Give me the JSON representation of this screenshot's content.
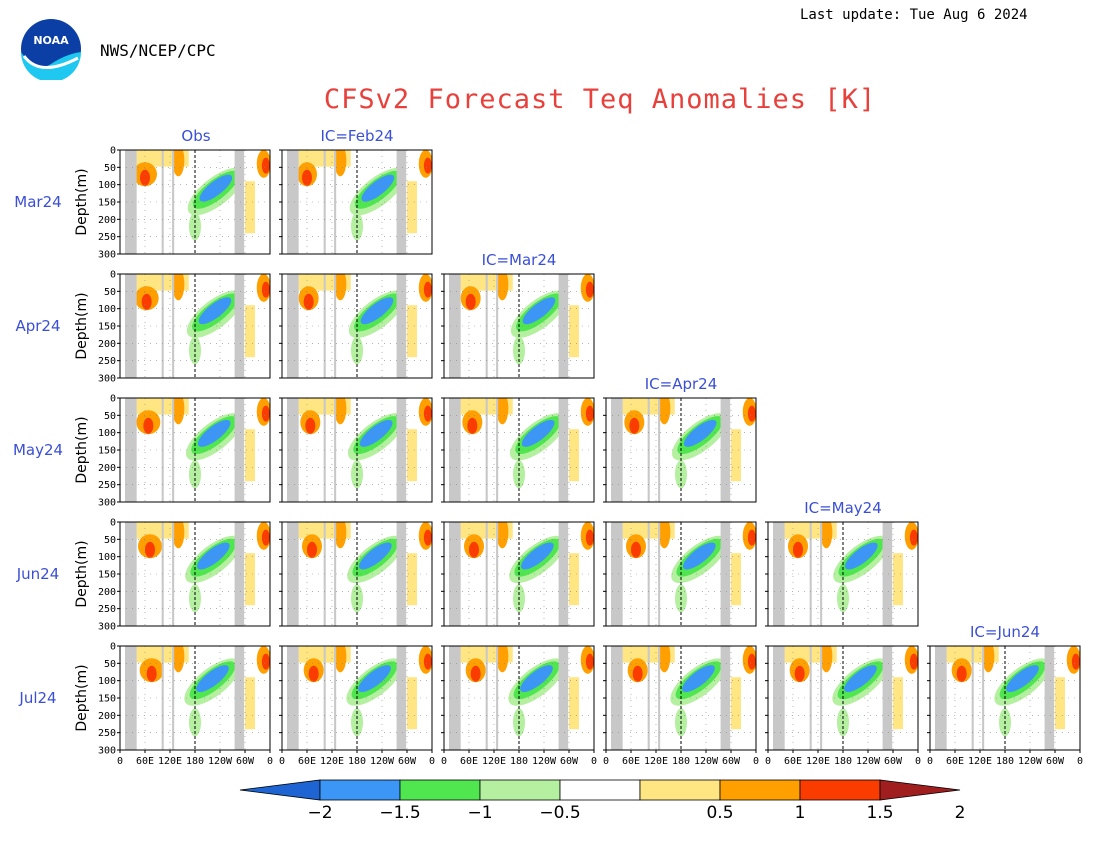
{
  "header": {
    "org": "NWS/NCEP/CPC",
    "last_update": "Last update: Tue Aug 6 2024",
    "logo_text": "NOAA",
    "title": "CFSv2 Forecast Teq Anomalies [K]"
  },
  "chart_data": {
    "type": "heatmap",
    "title": "CFSv2 Forecast Teq Anomalies [K]",
    "rows": [
      "Mar24",
      "Apr24",
      "May24",
      "Jun24",
      "Jul24"
    ],
    "columns": [
      "Obs",
      "IC=Feb24",
      "IC=Mar24",
      "IC=Apr24",
      "IC=May24",
      "IC=Jun24"
    ],
    "panel_layout": "row i shows Obs plus forecasts from IC=Feb24 .. IC for month i",
    "ylabel": "Depth(m)",
    "y_ticks": [
      "0",
      "50",
      "100",
      "150",
      "200",
      "250",
      "300"
    ],
    "ylim": [
      300,
      0
    ],
    "x_ticks": [
      "0",
      "60E",
      "120E",
      "180",
      "120W",
      "60W",
      "0"
    ],
    "xlim_deg": [
      0,
      360
    ],
    "colorbar": {
      "levels": [
        -2,
        -1.5,
        -1,
        -0.5,
        0.5,
        1,
        1.5,
        2
      ],
      "labels": [
        "−2",
        "−1.5",
        "−1",
        "−0.5",
        "0.5",
        "1",
        "1.5",
        "2"
      ],
      "colors": [
        "#1e64d2",
        "#3c96f5",
        "#50e650",
        "#b4f0a0",
        "#ffffff",
        "#ffe682",
        "#ffa000",
        "#fa3c00",
        "#a01e1e"
      ]
    },
    "land_mask_lon_ranges": [
      [
        12,
        40
      ],
      [
        100,
        105
      ],
      [
        125,
        130
      ],
      [
        275,
        298
      ]
    ],
    "features": {
      "warm_west_pacific_thermocline_depth_m": 80,
      "cold_east_pacific_thermocline_depth_m": 80,
      "dateline_marker_lon": 180
    }
  }
}
